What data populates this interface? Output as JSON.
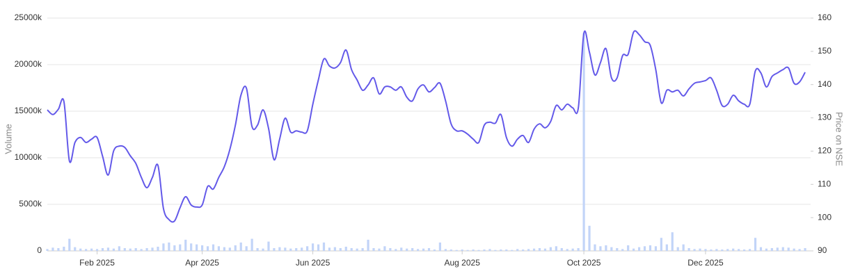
{
  "chart_data": {
    "type": "bar",
    "y_label": "Volume",
    "y2_label": "Price on NSE",
    "categories": [
      null,
      null,
      null,
      null,
      null,
      null,
      null,
      null,
      null,
      "Feb 2025",
      null,
      null,
      null,
      null,
      null,
      null,
      null,
      null,
      null,
      null,
      null,
      null,
      null,
      null,
      null,
      null,
      null,
      null,
      "Apr 2025",
      null,
      null,
      null,
      null,
      null,
      null,
      null,
      null,
      null,
      null,
      null,
      null,
      null,
      null,
      null,
      null,
      null,
      null,
      null,
      "Jun 2025",
      null,
      null,
      null,
      null,
      null,
      null,
      null,
      null,
      null,
      null,
      null,
      null,
      null,
      null,
      null,
      null,
      null,
      null,
      null,
      null,
      null,
      null,
      null,
      null,
      null,
      null,
      "Aug 2025",
      null,
      null,
      null,
      null,
      null,
      null,
      null,
      null,
      null,
      null,
      null,
      null,
      null,
      null,
      null,
      null,
      null,
      null,
      null,
      null,
      null,
      "Oct 2025",
      null,
      null,
      null,
      null,
      null,
      null,
      null,
      null,
      null,
      null,
      null,
      null,
      null,
      null,
      null,
      null,
      null,
      null,
      null,
      null,
      null,
      "Dec 2025",
      null,
      null,
      null,
      null,
      null,
      null,
      null,
      null,
      null,
      null,
      null,
      null,
      null,
      null,
      null,
      null,
      null,
      null
    ],
    "series": [
      {
        "name": "Volume",
        "type": "bar",
        "axis": "y",
        "color": "#c2d4f8",
        "values": [
          200,
          350,
          300,
          450,
          1300,
          400,
          250,
          200,
          250,
          200,
          300,
          350,
          250,
          500,
          300,
          250,
          300,
          200,
          300,
          350,
          450,
          800,
          900,
          600,
          700,
          1200,
          800,
          700,
          600,
          500,
          700,
          500,
          400,
          350,
          600,
          900,
          500,
          1300,
          300,
          250,
          1000,
          300,
          400,
          350,
          250,
          300,
          350,
          500,
          800,
          700,
          900,
          350,
          400,
          300,
          450,
          300,
          250,
          300,
          1200,
          300,
          250,
          500,
          300,
          200,
          350,
          250,
          300,
          200,
          250,
          300,
          150,
          900,
          200,
          150,
          100,
          150,
          100,
          150,
          100,
          150,
          200,
          100,
          150,
          150,
          100,
          200,
          150,
          200,
          250,
          300,
          250,
          400,
          500,
          300,
          200,
          250,
          300,
          23400,
          2700,
          700,
          500,
          600,
          400,
          300,
          200,
          600,
          250,
          400,
          500,
          600,
          500,
          1400,
          700,
          2000,
          400,
          700,
          300,
          200,
          250,
          200,
          150,
          200,
          150,
          200,
          250,
          200,
          150,
          200,
          1400,
          400,
          250,
          300,
          350,
          400,
          350,
          250,
          200,
          300
        ]
      },
      {
        "name": "Price",
        "type": "line",
        "axis": "y2",
        "color": "#6359e9",
        "values": [
          132.4,
          131.0,
          132.6,
          134.9,
          117.0,
          122.6,
          124.1,
          122.6,
          123.6,
          124.1,
          118.4,
          112.8,
          120.1,
          121.5,
          121.1,
          118.6,
          116.3,
          112.1,
          109.0,
          112.1,
          115.7,
          102.7,
          99.4,
          99.0,
          103.0,
          106.3,
          103.8,
          103.2,
          103.8,
          109.4,
          108.6,
          112.1,
          115.3,
          120.5,
          127.8,
          136.8,
          138.9,
          127.4,
          127.8,
          132.4,
          126.8,
          117.4,
          123.6,
          129.9,
          125.7,
          126.1,
          125.7,
          126.1,
          134.1,
          141.4,
          147.7,
          145.6,
          145.0,
          146.6,
          150.4,
          144.5,
          141.4,
          138.3,
          139.9,
          142.0,
          137.2,
          139.3,
          139.3,
          138.3,
          139.3,
          136.2,
          135.1,
          138.7,
          139.9,
          137.8,
          139.1,
          140.4,
          135.1,
          128.2,
          126.1,
          126.1,
          125.1,
          123.6,
          122.6,
          127.8,
          128.7,
          128.4,
          131.0,
          124.1,
          121.5,
          123.6,
          124.7,
          122.6,
          126.6,
          128.2,
          127.0,
          128.9,
          133.7,
          132.4,
          134.1,
          133.0,
          133.0,
          155.4,
          149.8,
          142.9,
          146.6,
          150.8,
          142.0,
          142.0,
          148.7,
          149.1,
          155.8,
          155.0,
          152.9,
          151.8,
          144.5,
          134.5,
          138.3,
          137.8,
          138.3,
          136.6,
          138.7,
          140.4,
          140.8,
          141.2,
          142.0,
          138.3,
          133.7,
          134.1,
          136.8,
          135.1,
          134.1,
          134.1,
          144.1,
          143.5,
          139.3,
          142.4,
          143.5,
          144.5,
          145.0,
          140.4,
          140.8,
          143.7
        ]
      }
    ],
    "ylim": [
      0,
      25000
    ],
    "yticks": [
      0,
      {
        "value": 5000,
        "label": "5000k"
      },
      {
        "value": 10000,
        "label": "10000k"
      },
      {
        "value": 15000,
        "label": "15000k"
      },
      {
        "value": 20000,
        "label": "20000k"
      },
      {
        "value": 25000,
        "label": "25000k"
      }
    ],
    "y2lim": [
      90,
      160
    ],
    "y2ticks": [
      90,
      100,
      110,
      120,
      130,
      140,
      150,
      160
    ],
    "grid": true
  }
}
